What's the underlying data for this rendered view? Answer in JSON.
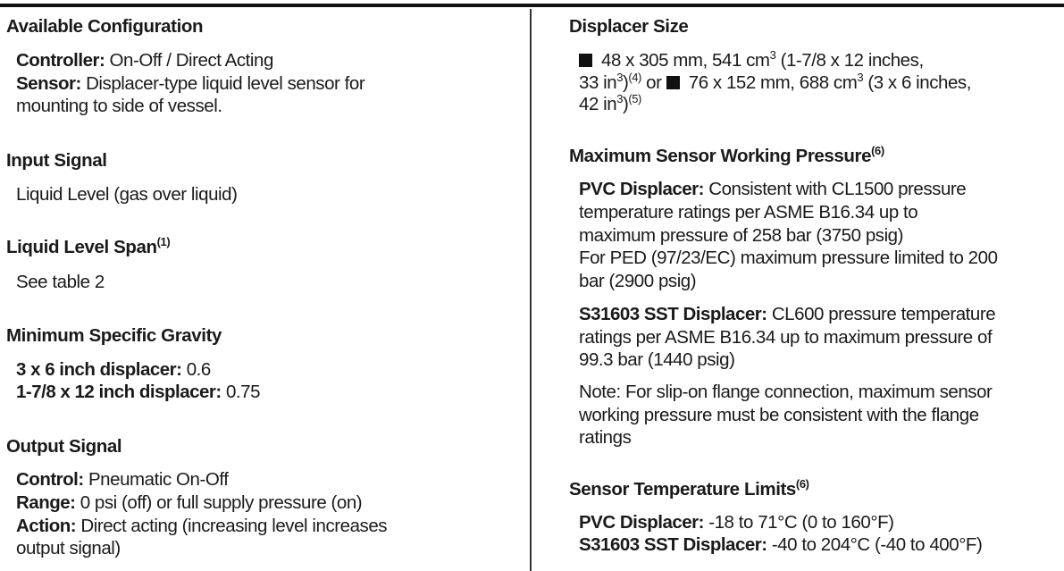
{
  "left": {
    "available_configuration": {
      "heading": "Available Configuration",
      "controller_label": "Controller:",
      "controller_text": " On-Off / Direct Acting",
      "sensor_label": "Sensor:",
      "sensor_text_1": " Displacer-type liquid level sensor for",
      "sensor_text_2": "mounting to side of vessel."
    },
    "input_signal": {
      "heading": "Input Signal",
      "text": "Liquid Level (gas over liquid)"
    },
    "liquid_level_span": {
      "heading": "Liquid Level Span",
      "note": "(1)",
      "text": "See table 2"
    },
    "minimum_specific_gravity": {
      "heading": "Minimum Specific Gravity",
      "line1_label": "3 x 6 inch displacer:",
      "line1_value": " 0.6",
      "line2_label": "1-7/8 x 12 inch displacer:",
      "line2_value": " 0.75"
    },
    "output_signal": {
      "heading": "Output Signal",
      "control_label": "Control:",
      "control_text": " Pneumatic On-Off",
      "range_label": "Range:",
      "range_text": " 0 psi (off) or full supply pressure (on)",
      "action_label": "Action:",
      "action_text_1": " Direct acting (increasing level increases",
      "action_text_2": "output signal)"
    }
  },
  "right": {
    "displacer_size": {
      "heading": "Displacer Size",
      "a1": "48 x 305 mm, 541 cm",
      "a_sup": "3",
      "a2": " (1-7/8 x 12 inches,",
      "a3": "33 in",
      "a3_sup": "3",
      "a4": ")",
      "a_note": "(4)",
      "or": " or ",
      "b1": "76 x 152 mm, 688 cm",
      "b_sup": "3",
      "b2": " (3 x 6 inches,",
      "b3": "42 in",
      "b3_sup": "3",
      "b4": ")",
      "b_note": "(5)"
    },
    "max_pressure": {
      "heading": "Maximum Sensor Working Pressure",
      "note": "(6)",
      "pvc_label": "PVC Displacer:",
      "pvc_1": " Consistent with CL1500 pressure",
      "pvc_2": "temperature ratings per ASME B16.34 up to",
      "pvc_3": "maximum pressure of 258 bar (3750 psig)",
      "pvc_4": "For PED (97/23/EC) maximum pressure limited to 200",
      "pvc_5": "bar (2900 psig)",
      "sst_label": "S31603 SST Displacer:",
      "sst_1": " CL600 pressure temperature",
      "sst_2": "ratings per ASME B16.34 up to maximum pressure of",
      "sst_3": "99.3 bar (1440 psig)",
      "note_1": "Note: For slip-on flange connection, maximum sensor",
      "note_2": "working pressure must be consistent with the flange",
      "note_3": "ratings"
    },
    "temperature_limits": {
      "heading": "Sensor Temperature Limits",
      "note": "(6)",
      "pvc_label": "PVC Displacer:",
      "pvc_text": " -18 to 71°C (0 to 160°F)",
      "sst_label": "S31603 SST Displacer:",
      "sst_text": " -40 to 204°C (-40 to 400°F)"
    }
  }
}
